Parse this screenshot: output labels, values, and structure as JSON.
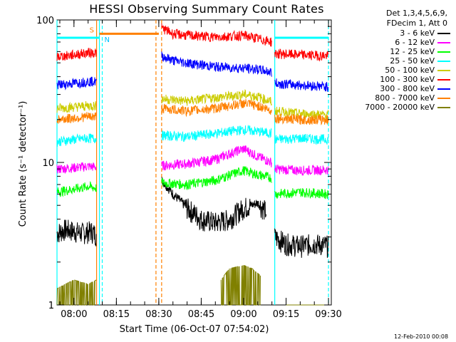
{
  "chart_data": {
    "type": "line",
    "title": "HESSI Observing Summary Count Rates",
    "xlabel": "Start Time (06-Oct-07 07:54:02)",
    "ylabel": "Count Rate (s⁻¹ detector⁻¹)",
    "yscale": "log",
    "ylim": [
      1,
      100
    ],
    "xlim": [
      "07:54",
      "09:31"
    ],
    "x_ticks": [
      "08:00",
      "08:15",
      "08:30",
      "08:45",
      "09:00",
      "09:15",
      "09:30"
    ],
    "y_ticks": [
      "1",
      "10",
      "100"
    ],
    "grid": false,
    "legend_position": "top-right",
    "legend_header": [
      "Det 1,3,4,5,6,9,",
      "FDecim 1, Att 0"
    ],
    "series": [
      {
        "name": "3 - 6 keV",
        "color": "#000000",
        "segments": [
          {
            "t": [
              "07:54",
              "07:57",
              "08:00",
              "08:03",
              "08:06",
              "08:08"
            ],
            "v": [
              3.2,
              3.4,
              3.3,
              3.2,
              3.3,
              3.1
            ]
          },
          {
            "t": [
              "08:31",
              "08:35",
              "08:40",
              "08:45",
              "08:50",
              "08:55",
              "09:00",
              "09:05",
              "09:08"
            ],
            "v": [
              7.5,
              6.0,
              4.8,
              4.0,
              3.8,
              4.0,
              4.8,
              5.2,
              4.5
            ]
          },
          {
            "t": [
              "09:11",
              "09:15",
              "09:20",
              "09:25",
              "09:30"
            ],
            "v": [
              3.0,
              2.7,
              2.6,
              2.7,
              2.6
            ]
          }
        ]
      },
      {
        "name": "6 - 12 keV",
        "color": "#ff00ff",
        "segments": [
          {
            "t": [
              "07:54",
              "08:00",
              "08:05",
              "08:08"
            ],
            "v": [
              9.0,
              9.2,
              9.4,
              9.3
            ]
          },
          {
            "t": [
              "08:31",
              "08:40",
              "08:50",
              "08:55",
              "09:00",
              "09:05",
              "09:10"
            ],
            "v": [
              9.5,
              9.8,
              10.5,
              11.5,
              12.5,
              11.0,
              10.0
            ]
          },
          {
            "t": [
              "09:11",
              "09:20",
              "09:30"
            ],
            "v": [
              9.0,
              8.8,
              8.9
            ]
          }
        ]
      },
      {
        "name": "12 - 25 keV",
        "color": "#00ff00",
        "segments": [
          {
            "t": [
              "07:54",
              "08:00",
              "08:05",
              "08:08"
            ],
            "v": [
              6.2,
              6.5,
              6.8,
              6.6
            ]
          },
          {
            "t": [
              "08:31",
              "08:40",
              "08:50",
              "09:00",
              "09:05",
              "09:10"
            ],
            "v": [
              7.2,
              7.0,
              7.5,
              8.8,
              8.2,
              7.8
            ]
          },
          {
            "t": [
              "09:11",
              "09:20",
              "09:30"
            ],
            "v": [
              6.0,
              6.2,
              6.0
            ]
          }
        ]
      },
      {
        "name": "25 - 50 keV",
        "color": "#00ffff",
        "segments": [
          {
            "t": [
              "07:54",
              "08:00",
              "08:05",
              "08:08"
            ],
            "v": [
              14.0,
              14.5,
              14.8,
              14.7
            ]
          },
          {
            "t": [
              "08:31",
              "08:40",
              "08:50",
              "09:00",
              "09:05",
              "09:10"
            ],
            "v": [
              15.5,
              15.2,
              16.0,
              17.0,
              16.5,
              16.0
            ]
          },
          {
            "t": [
              "09:11",
              "09:20",
              "09:30"
            ],
            "v": [
              14.5,
              14.8,
              14.5
            ]
          }
        ]
      },
      {
        "name": "50 - 100 keV",
        "color": "#cccc00",
        "segments": [
          {
            "t": [
              "07:54",
              "08:00",
              "08:05",
              "08:08"
            ],
            "v": [
              24.0,
              24.5,
              25.0,
              25.0
            ]
          },
          {
            "t": [
              "08:31",
              "08:40",
              "08:50",
              "09:00",
              "09:05",
              "09:10"
            ],
            "v": [
              28.0,
              27.0,
              28.5,
              30.0,
              29.0,
              26.5
            ]
          },
          {
            "t": [
              "09:11",
              "09:20",
              "09:30"
            ],
            "v": [
              23.0,
              22.0,
              21.5
            ]
          }
        ]
      },
      {
        "name": "100 - 300 keV",
        "color": "#ff0000",
        "segments": [
          {
            "t": [
              "07:54",
              "08:00",
              "08:05",
              "08:08"
            ],
            "v": [
              55,
              57,
              59,
              59
            ]
          },
          {
            "t": [
              "08:31",
              "08:35",
              "08:40",
              "08:50",
              "09:00",
              "09:05",
              "09:10"
            ],
            "v": [
              88,
              80,
              78,
              76,
              78,
              74,
              70
            ]
          },
          {
            "t": [
              "09:11",
              "09:20",
              "09:30"
            ],
            "v": [
              58,
              57,
              56
            ]
          }
        ]
      },
      {
        "name": "300 - 800 keV",
        "color": "#0000ff",
        "segments": [
          {
            "t": [
              "07:54",
              "08:00",
              "08:05",
              "08:08"
            ],
            "v": [
              35,
              36,
              37,
              37
            ]
          },
          {
            "t": [
              "08:31",
              "08:35",
              "08:40",
              "08:50",
              "09:00",
              "09:05",
              "09:10"
            ],
            "v": [
              56,
              52,
              50,
              47,
              46,
              45,
              43
            ]
          },
          {
            "t": [
              "09:11",
              "09:20",
              "09:30"
            ],
            "v": [
              36,
              35,
              34
            ]
          }
        ]
      },
      {
        "name": "800 - 7000 keV",
        "color": "#ff8000",
        "segments": [
          {
            "t": [
              "07:54",
              "08:00",
              "08:05",
              "08:08"
            ],
            "v": [
              20,
              20.5,
              21,
              21
            ]
          },
          {
            "t": [
              "08:31",
              "08:40",
              "08:50",
              "09:00",
              "09:05",
              "09:10"
            ],
            "v": [
              24,
              23,
              24,
              26,
              25,
              23
            ]
          },
          {
            "t": [
              "09:11",
              "09:20",
              "09:30"
            ],
            "v": [
              20.5,
              20,
              20
            ]
          }
        ]
      },
      {
        "name": "7000 - 20000 keV",
        "color": "#808000",
        "segments": [
          {
            "t": [
              "07:54",
              "08:00",
              "08:05",
              "08:08"
            ],
            "v": [
              1.3,
              1.5,
              1.4,
              1.5
            ]
          },
          {
            "t": [
              "08:52",
              "08:55",
              "09:00",
              "09:03",
              "09:06"
            ],
            "v": [
              1.5,
              1.8,
              1.9,
              1.8,
              1.6
            ]
          },
          {
            "t": [
              "09:15",
              "09:30"
            ],
            "v": [
              1.0,
              1.0
            ]
          }
        ]
      }
    ],
    "annotations": [
      {
        "text": "S",
        "color": "#ff8000"
      },
      {
        "text": "N",
        "color": "#00c0ff"
      }
    ],
    "orbit_flags": [
      {
        "name": "saa-flag",
        "color": "#ff8000",
        "t": [
          "08:09",
          "08:30"
        ],
        "v": 80
      },
      {
        "name": "night-flag-1",
        "color": "#00ffff",
        "t": [
          "07:54",
          "08:09"
        ],
        "v": 75
      },
      {
        "name": "night-flag-2",
        "color": "#00ffff",
        "t": [
          "09:11",
          "09:30"
        ],
        "v": 75
      }
    ],
    "vertical_markers": [
      {
        "t": "08:08",
        "color": "#ff8000",
        "style": "solid"
      },
      {
        "t": "08:09",
        "color": "#00ffff",
        "style": "solid"
      },
      {
        "t": "08:10",
        "color": "#00ffff",
        "style": "dashed"
      },
      {
        "t": "08:29",
        "color": "#ff8000",
        "style": "dashed"
      },
      {
        "t": "08:31",
        "color": "#ff8000",
        "style": "dashed"
      },
      {
        "t": "09:11",
        "color": "#00ffff",
        "style": "solid"
      },
      {
        "t": "09:30",
        "color": "#00ffff",
        "style": "dashed"
      },
      {
        "t": "07:54",
        "color": "#00ffff",
        "style": "solid"
      }
    ]
  },
  "footer": {
    "stamp": "12-Feb-2010 00:08"
  }
}
